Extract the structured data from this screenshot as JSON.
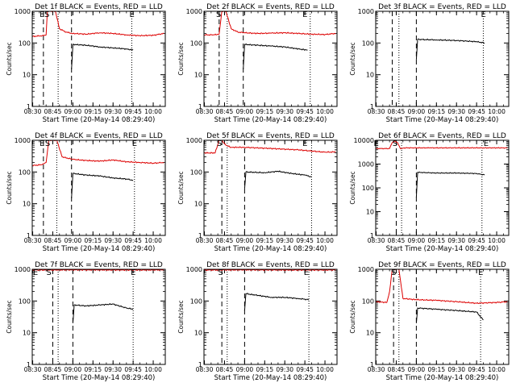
{
  "common": {
    "ylabel": "Counts/sec",
    "xlabel": "Start Time (20-May-14 08:29:40)",
    "y_ticks": [
      "1",
      "10",
      "100",
      "1000"
    ],
    "x_ticks": [
      "08:30",
      "08:45",
      "09:00",
      "09:15",
      "09:30",
      "09:45",
      "10:00"
    ],
    "colors": {
      "events": "#000000",
      "lld": "#dd0000"
    }
  },
  "chart_data": [
    {
      "type": "line",
      "title": "Det 1f BLACK = Events, RED = LLD",
      "xlim": [
        "08:29:40",
        "10:09:00"
      ],
      "ylim": [
        1,
        1000
      ],
      "yscale": "log",
      "markers": [
        {
          "time": "08:37",
          "label": "E"
        },
        {
          "time": "08:40:30",
          "label": "S"
        },
        {
          "time": "09:44",
          "label": "E"
        }
      ],
      "dashed_lines": [
        "08:38",
        "08:59"
      ],
      "dotted_lines": [
        "08:49",
        "09:44"
      ],
      "series": [
        {
          "name": "Events",
          "color": "#000000",
          "x": [
            "08:59",
            "09:00",
            "09:10",
            "09:20",
            "09:30",
            "09:40",
            "09:45"
          ],
          "values": [
            15,
            90,
            85,
            75,
            70,
            65,
            60
          ]
        },
        {
          "name": "LLD",
          "color": "#dd0000",
          "x": [
            "08:29:40",
            "08:37",
            "08:40",
            "08:41",
            "08:44",
            "08:47",
            "08:50",
            "08:55",
            "09:00",
            "09:10",
            "09:20",
            "09:30",
            "09:40",
            "09:50",
            "10:00",
            "10:08"
          ],
          "values": [
            160,
            170,
            180,
            1000,
            1000,
            1000,
            280,
            220,
            200,
            190,
            210,
            200,
            180,
            170,
            175,
            200
          ]
        }
      ]
    },
    {
      "type": "line",
      "title": "Det 2f BLACK = Events, RED = LLD",
      "xlim": [
        "08:29:40",
        "10:09:00"
      ],
      "ylim": [
        1,
        1000
      ],
      "yscale": "log",
      "markers": [
        {
          "time": "08:40:30",
          "label": "S"
        },
        {
          "time": "09:45",
          "label": "E"
        }
      ],
      "dashed_lines": [
        "08:41",
        "08:59"
      ],
      "dotted_lines": [
        "08:47",
        "09:49"
      ],
      "series": [
        {
          "name": "Events",
          "color": "#000000",
          "x": [
            "08:59",
            "09:00",
            "09:10",
            "09:20",
            "09:30",
            "09:40",
            "09:47"
          ],
          "values": [
            15,
            90,
            85,
            80,
            75,
            65,
            60
          ]
        },
        {
          "name": "LLD",
          "color": "#dd0000",
          "x": [
            "08:29:40",
            "08:37",
            "08:41",
            "08:43",
            "08:46",
            "08:50",
            "08:55",
            "09:00",
            "09:10",
            "09:20",
            "09:30",
            "09:40",
            "09:50",
            "10:00",
            "10:08"
          ],
          "values": [
            180,
            180,
            190,
            1000,
            1000,
            280,
            220,
            210,
            200,
            205,
            210,
            200,
            190,
            185,
            200
          ]
        }
      ]
    },
    {
      "type": "line",
      "title": "Det 3f BLACK = Events, RED = LLD",
      "xlim": [
        "08:29:40",
        "10:09:00"
      ],
      "ylim": [
        1,
        1000
      ],
      "yscale": "log",
      "markers": [
        {
          "time": "09:50",
          "label": "E"
        }
      ],
      "dashed_lines": [
        "08:42",
        "09:00"
      ],
      "dotted_lines": [
        "08:47",
        "09:50"
      ],
      "series": [
        {
          "name": "Events",
          "color": "#000000",
          "x": [
            "09:00",
            "09:01",
            "09:15",
            "09:30",
            "09:45",
            "09:51"
          ],
          "values": [
            30,
            130,
            125,
            120,
            110,
            100
          ]
        }
      ]
    },
    {
      "type": "line",
      "title": "Det 4f BLACK = Events, RED = LLD",
      "xlim": [
        "08:29:40",
        "10:09:00"
      ],
      "ylim": [
        1,
        1000
      ],
      "yscale": "log",
      "markers": [
        {
          "time": "08:37",
          "label": "E"
        },
        {
          "time": "08:41",
          "label": "S"
        },
        {
          "time": "09:46",
          "label": "E"
        }
      ],
      "dashed_lines": [
        "08:38",
        "08:59"
      ],
      "dotted_lines": [
        "08:48",
        "09:46"
      ],
      "series": [
        {
          "name": "Events",
          "color": "#000000",
          "x": [
            "08:59",
            "09:00",
            "09:10",
            "09:20",
            "09:30",
            "09:40",
            "09:45"
          ],
          "values": [
            15,
            90,
            80,
            75,
            65,
            60,
            55
          ]
        },
        {
          "name": "LLD",
          "color": "#dd0000",
          "x": [
            "08:29:40",
            "08:37",
            "08:40",
            "08:42",
            "08:46",
            "08:48",
            "08:52",
            "09:00",
            "09:10",
            "09:20",
            "09:30",
            "09:40",
            "09:50",
            "10:00",
            "10:08"
          ],
          "values": [
            160,
            170,
            200,
            1000,
            1000,
            1000,
            300,
            250,
            230,
            220,
            240,
            210,
            200,
            190,
            200
          ]
        }
      ]
    },
    {
      "type": "line",
      "title": "Det 5f BLACK = Events, RED = LLD",
      "xlim": [
        "08:29:40",
        "10:09:00"
      ],
      "ylim": [
        1,
        1000
      ],
      "yscale": "log",
      "markers": [
        {
          "time": "08:41",
          "label": "S"
        },
        {
          "time": "09:45",
          "label": "E"
        }
      ],
      "dashed_lines": [
        "08:43",
        "09:00"
      ],
      "dotted_lines": [
        "08:47",
        "09:50"
      ],
      "series": [
        {
          "name": "Events",
          "color": "#000000",
          "x": [
            "09:00",
            "09:01",
            "09:15",
            "09:25",
            "09:35",
            "09:45",
            "09:50"
          ],
          "values": [
            30,
            100,
            95,
            105,
            90,
            80,
            70
          ]
        },
        {
          "name": "LLD",
          "color": "#dd0000",
          "x": [
            "08:29:40",
            "08:38",
            "08:41",
            "08:43",
            "08:46",
            "08:50",
            "09:00",
            "09:20",
            "09:40",
            "10:00",
            "10:08"
          ],
          "values": [
            400,
            400,
            1000,
            1000,
            700,
            600,
            600,
            550,
            500,
            420,
            430
          ]
        }
      ]
    },
    {
      "type": "line",
      "title": "Det 6f BLACK = Events, RED = LLD",
      "xlim": [
        "08:29:40",
        "10:09:00"
      ],
      "ylim": [
        1,
        10000
      ],
      "yscale": "log",
      "markers": [
        {
          "time": "08:30",
          "label": "E"
        },
        {
          "time": "08:44",
          "label": "S"
        },
        {
          "time": "09:52",
          "label": "E"
        }
      ],
      "dashed_lines": [
        "08:45",
        "09:00"
      ],
      "dotted_lines": [
        "08:49",
        "09:49"
      ],
      "series": [
        {
          "name": "Events",
          "color": "#000000",
          "x": [
            "09:00",
            "09:01",
            "09:15",
            "09:30",
            "09:45",
            "09:51"
          ],
          "values": [
            40,
            450,
            420,
            420,
            400,
            350
          ]
        },
        {
          "name": "LLD",
          "color": "#dd0000",
          "x": [
            "08:29:40",
            "08:40",
            "08:42",
            "08:44",
            "08:46",
            "08:48",
            "08:52",
            "09:10",
            "09:30",
            "09:50",
            "10:08"
          ],
          "values": [
            4500,
            4500,
            8000,
            9500,
            8000,
            4500,
            4800,
            4800,
            4800,
            4800,
            4800
          ]
        }
      ]
    },
    {
      "type": "line",
      "title": "Det 7f BLACK = Events, RED = LLD",
      "xlim": [
        "08:29:40",
        "10:09:00"
      ],
      "ylim": [
        1,
        1000
      ],
      "yscale": "log",
      "markers": [
        {
          "time": "08:32",
          "label": "E"
        },
        {
          "time": "08:42",
          "label": "S"
        },
        {
          "time": "09:45",
          "label": "E"
        }
      ],
      "dashed_lines": [
        "08:45",
        "09:00"
      ],
      "dotted_lines": [
        "08:49",
        "09:45"
      ],
      "series": [
        {
          "name": "Events",
          "color": "#000000",
          "x": [
            "09:00",
            "09:01",
            "09:10",
            "09:20",
            "09:30",
            "09:40",
            "09:45"
          ],
          "values": [
            20,
            75,
            70,
            75,
            80,
            60,
            55
          ]
        },
        {
          "name": "LLD",
          "color": "#dd0000",
          "x": [
            "08:29:40",
            "08:45",
            "09:00",
            "09:30",
            "10:00",
            "10:08"
          ],
          "values": [
            950,
            950,
            960,
            950,
            950,
            960
          ]
        }
      ]
    },
    {
      "type": "line",
      "title": "Det 8f BLACK = Events, RED = LLD",
      "xlim": [
        "08:29:40",
        "10:09:00"
      ],
      "ylim": [
        1,
        1000
      ],
      "yscale": "log",
      "markers": [
        {
          "time": "08:42",
          "label": "S"
        },
        {
          "time": "09:46",
          "label": "E"
        }
      ],
      "dashed_lines": [
        "08:43",
        "09:00"
      ],
      "dotted_lines": [
        "08:47",
        "09:48"
      ],
      "series": [
        {
          "name": "Events",
          "color": "#000000",
          "x": [
            "09:00",
            "09:01",
            "09:10",
            "09:20",
            "09:30",
            "09:40",
            "09:48"
          ],
          "values": [
            50,
            170,
            150,
            130,
            130,
            120,
            110
          ]
        },
        {
          "name": "LLD",
          "color": "#dd0000",
          "x": [
            "08:29:40",
            "08:45",
            "09:00",
            "09:30",
            "10:00",
            "10:08"
          ],
          "values": [
            950,
            950,
            960,
            950,
            950,
            960
          ]
        }
      ]
    },
    {
      "type": "line",
      "title": "Det 9f BLACK = Events, RED = LLD",
      "xlim": [
        "08:29:40",
        "10:09:00"
      ],
      "ylim": [
        1,
        1000
      ],
      "yscale": "log",
      "markers": [
        {
          "time": "08:43",
          "label": "S"
        },
        {
          "time": "09:48",
          "label": "E"
        }
      ],
      "dashed_lines": [
        "08:43",
        "09:00"
      ],
      "dotted_lines": [
        "08:47",
        "09:48"
      ],
      "series": [
        {
          "name": "Events",
          "color": "#000000",
          "x": [
            "09:00",
            "09:01",
            "09:15",
            "09:30",
            "09:45",
            "09:50"
          ],
          "values": [
            20,
            60,
            55,
            50,
            45,
            25
          ]
        },
        {
          "name": "LLD",
          "color": "#dd0000",
          "x": [
            "08:29:40",
            "08:38",
            "08:40",
            "08:42",
            "08:45",
            "08:47",
            "08:50",
            "09:00",
            "09:15",
            "09:30",
            "09:45",
            "10:00",
            "10:08"
          ],
          "values": [
            95,
            90,
            200,
            1000,
            1000,
            1000,
            120,
            110,
            105,
            95,
            85,
            90,
            95
          ]
        }
      ]
    }
  ]
}
